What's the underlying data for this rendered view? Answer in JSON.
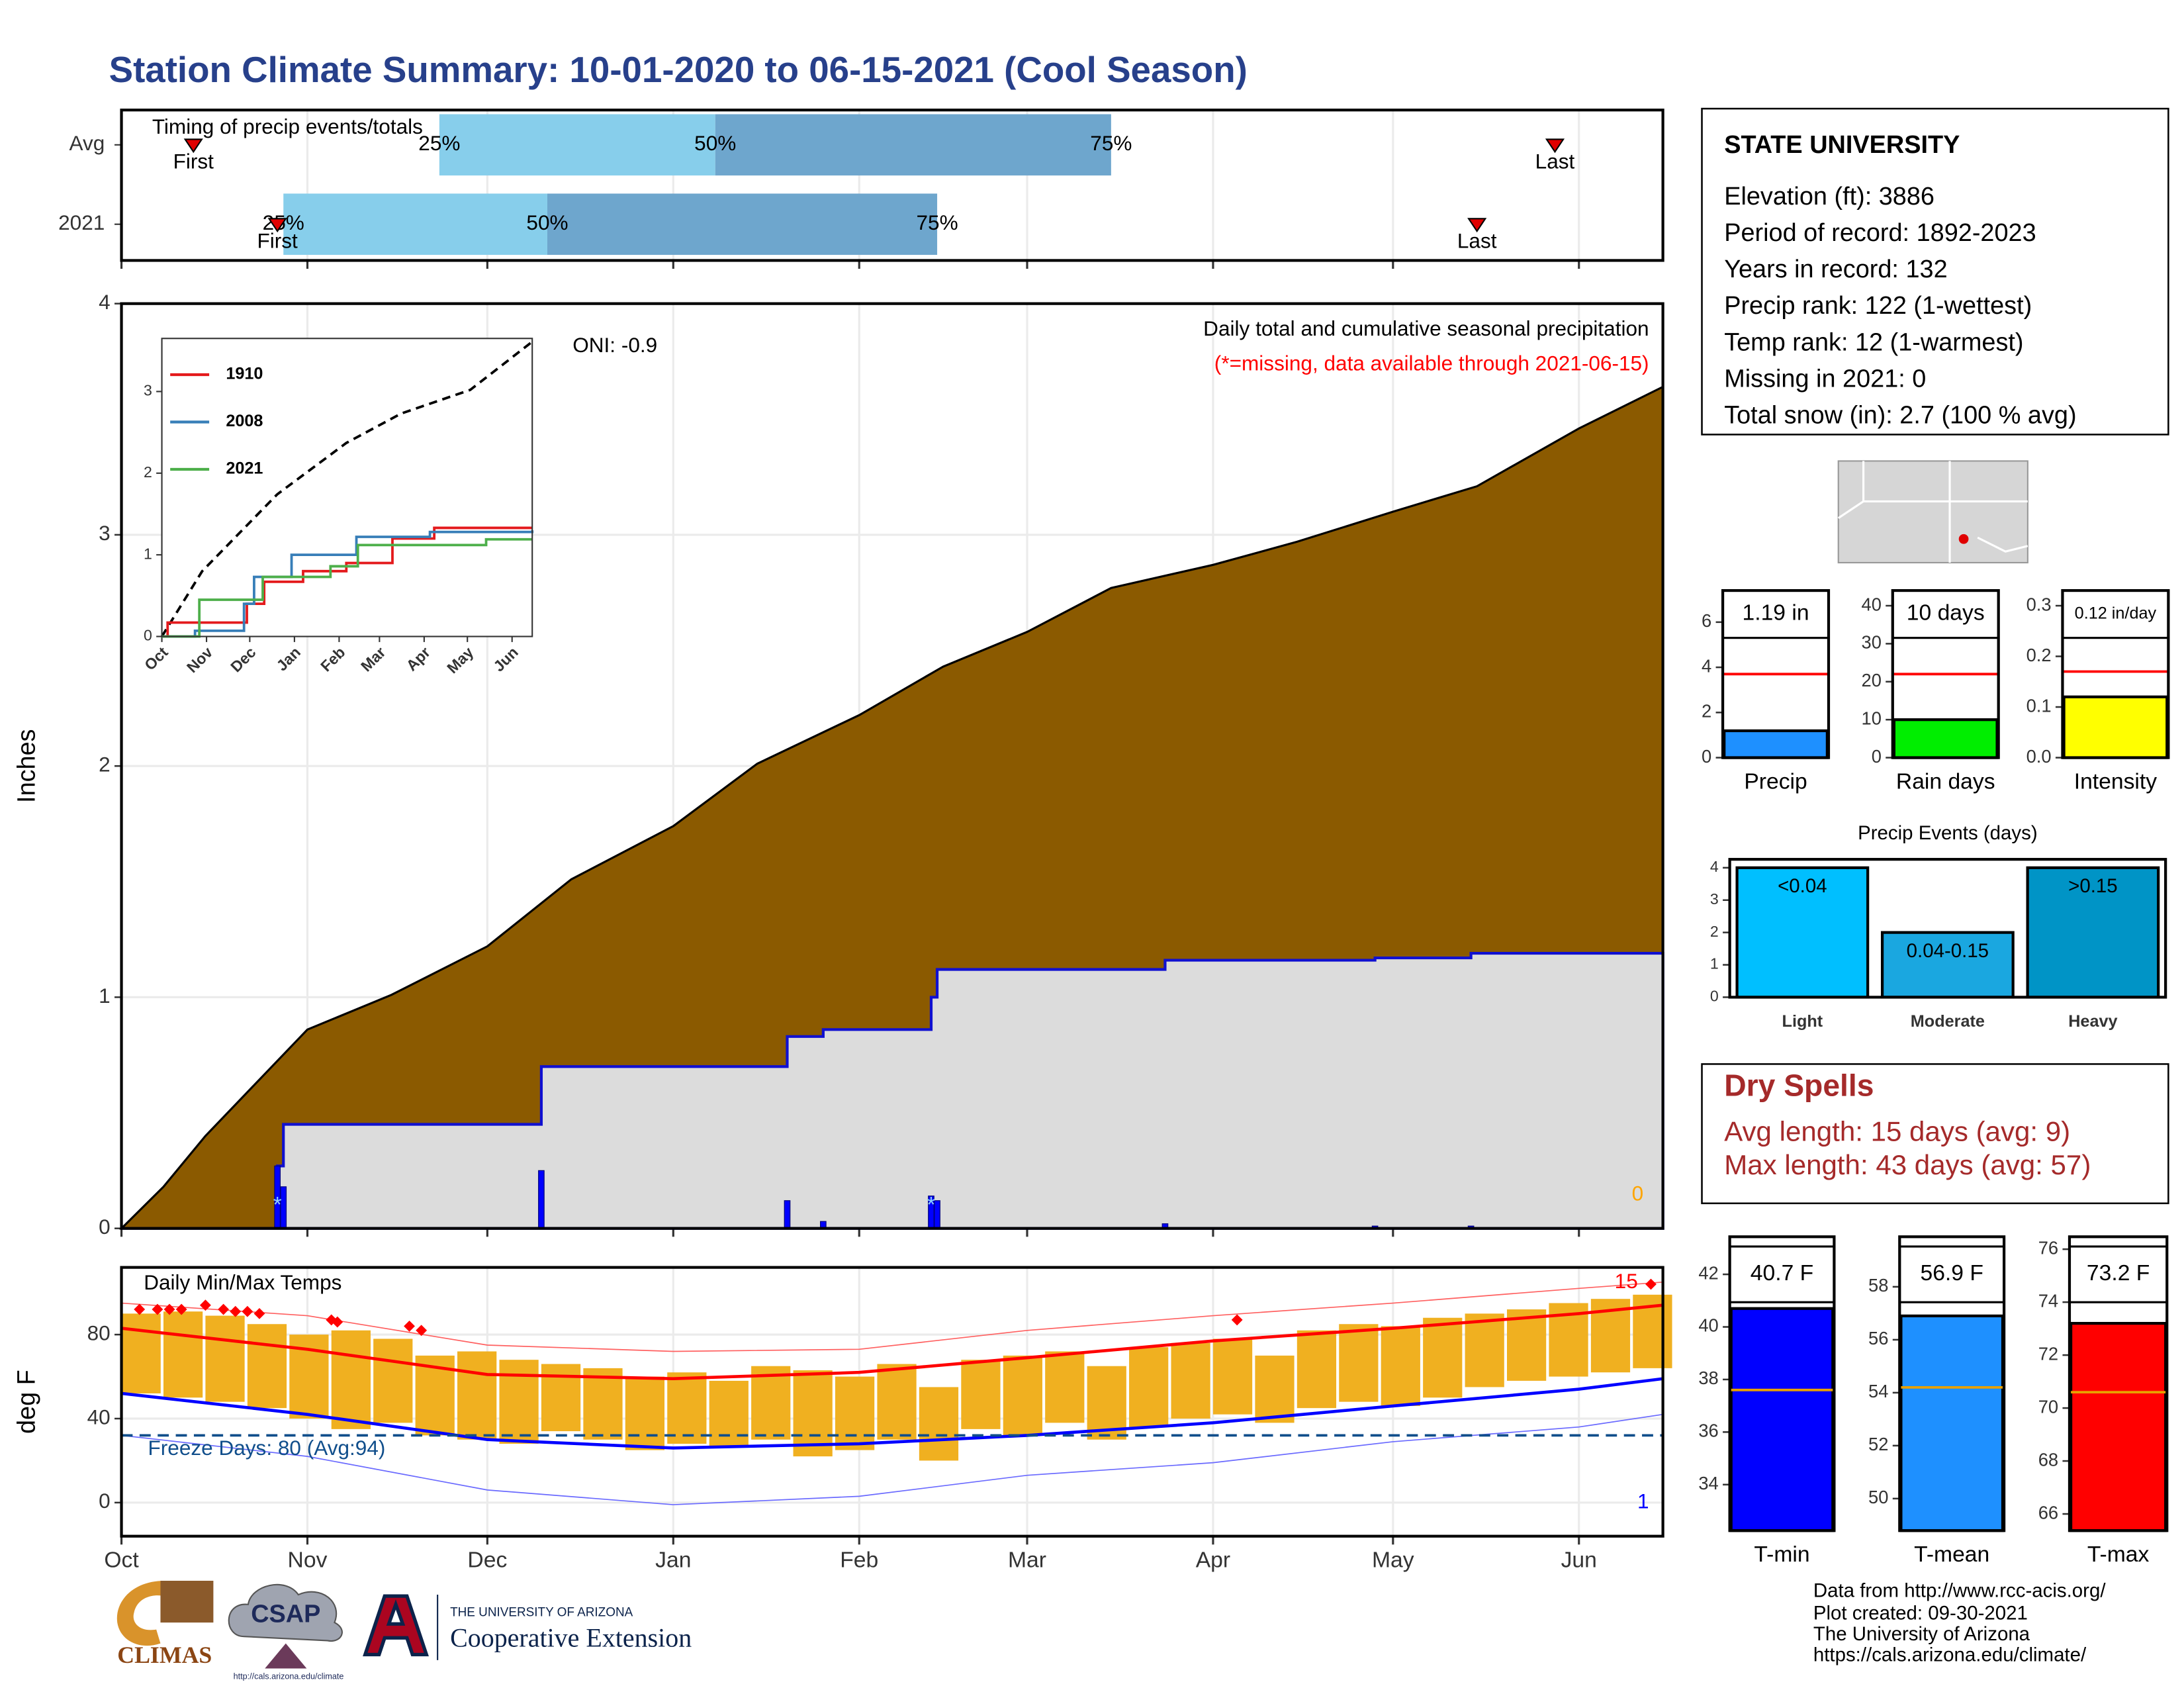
{
  "title": "Station Climate Summary: 10-01-2020 to 06-15-2021 (Cool Season)",
  "station": {
    "name": "STATE UNIVERSITY",
    "lines": [
      "Elevation (ft): 3886",
      "Period of record: 1892-2023",
      "Years in record: 132",
      "Precip rank: 122 (1-wettest)",
      "Temp rank: 12 (1-warmest)",
      "Missing in 2021: 0",
      "Total snow (in): 2.7 (100 % avg)"
    ]
  },
  "dry_spells": {
    "title": "Dry Spells",
    "lines": [
      "Avg length: 15 days (avg: 9)",
      "Max length: 43 days (avg: 57)"
    ]
  },
  "footer": [
    "Data from http://www.rcc-acis.org/",
    "Plot created: 09-30-2021",
    "The University of Arizona",
    "https://cals.arizona.edu/climate/"
  ],
  "logos": {
    "climas": "CLIMAS",
    "csap": "CSAP",
    "csap_url": "http://cals.arizona.edu/climate",
    "ua": "THE UNIVERSITY OF ARIZONA",
    "extension": "Cooperative Extension"
  },
  "chart_data": [
    {
      "type": "timing",
      "title": "Timing of precip events/totals",
      "categories": [
        "Avg",
        "2021"
      ],
      "xlim": [
        0,
        257
      ],
      "xticks": [
        0,
        31,
        61,
        92,
        123,
        151,
        182,
        212,
        243
      ],
      "grid": true,
      "quantile_labels": [
        "25%",
        "50%",
        "75%"
      ],
      "first_label": "First",
      "last_label": "Last",
      "series": [
        {
          "first": 12,
          "quantiles": [
            53,
            99,
            165
          ],
          "last": 239
        },
        {
          "first": 26,
          "quantiles": [
            27,
            71,
            136
          ],
          "last": 226
        }
      ],
      "colors": [
        "#87ceeb",
        "#6ea6cd"
      ],
      "marker_color": "#e00000"
    },
    {
      "type": "precip",
      "title": "Daily total and cumulative seasonal precipitation",
      "subtitle": "(*=missing, data available through 2021-06-15)",
      "annotation": "ONI: -0.9",
      "ylabel": "Inches",
      "xlim": [
        0,
        257
      ],
      "xticks": [
        0,
        31,
        61,
        92,
        123,
        151,
        182,
        212,
        243
      ],
      "ylim": [
        0,
        4
      ],
      "yticks": [
        0,
        1,
        2,
        3,
        4
      ],
      "grid": true,
      "average": {
        "x": [
          0,
          7,
          14,
          31,
          45,
          61,
          75,
          92,
          106,
          123,
          137,
          151,
          165,
          182,
          196,
          212,
          226,
          243,
          257
        ],
        "values": [
          0,
          0.18,
          0.4,
          0.86,
          1.01,
          1.22,
          1.51,
          1.74,
          2.01,
          2.22,
          2.43,
          2.58,
          2.77,
          2.87,
          2.97,
          3.1,
          3.21,
          3.46,
          3.64
        ],
        "color": "#8b5a00"
      },
      "season": {
        "x": [
          0,
          26,
          27,
          70,
          111,
          117,
          135,
          136,
          174,
          209,
          225,
          257
        ],
        "values": [
          0,
          0.27,
          0.45,
          0.7,
          0.83,
          0.86,
          1.0,
          1.12,
          1.16,
          1.17,
          1.19,
          1.19
        ],
        "color": "#1010d0"
      },
      "daily": {
        "x": [
          26,
          27,
          70,
          111,
          117,
          135,
          136,
          174,
          209,
          225
        ],
        "values": [
          0.27,
          0.18,
          0.25,
          0.12,
          0.03,
          0.14,
          0.12,
          0.02,
          0.01,
          0.01
        ],
        "color": "#0000ff"
      },
      "snow": {
        "x": [
          26,
          135
        ],
        "symbol": "*"
      },
      "missing_count": 0
    },
    {
      "type": "line",
      "xlim": [
        0,
        257
      ],
      "ylim": [
        0,
        3.65
      ],
      "yticks": [
        0,
        1,
        2,
        3
      ],
      "xticks": [
        {
          "value": 0,
          "label": "Oct"
        },
        {
          "value": 31,
          "label": "Nov"
        },
        {
          "value": 61,
          "label": "Dec"
        },
        {
          "value": 92,
          "label": "Jan"
        },
        {
          "value": 123,
          "label": "Feb"
        },
        {
          "value": 151,
          "label": "Mar"
        },
        {
          "value": 182,
          "label": "Apr"
        },
        {
          "value": 212,
          "label": "May"
        },
        {
          "value": 243,
          "label": "Jun"
        }
      ],
      "series": [
        {
          "name": "1910",
          "color": "#e41a1c",
          "x": [
            0,
            4,
            59,
            71,
            98,
            128,
            160,
            189,
            257
          ],
          "values": [
            0,
            0.17,
            0.4,
            0.67,
            0.8,
            0.9,
            1.2,
            1.33,
            1.33
          ]
        },
        {
          "name": "2008",
          "color": "#377eb8",
          "x": [
            0,
            23,
            57,
            64,
            90,
            135,
            186,
            257
          ],
          "values": [
            0,
            0.07,
            0.4,
            0.73,
            1.0,
            1.22,
            1.28,
            1.3
          ]
        },
        {
          "name": "2021",
          "color": "#4daf4a",
          "x": [
            0,
            26,
            70,
            117,
            136,
            225,
            257
          ],
          "values": [
            0,
            0.45,
            0.73,
            0.86,
            1.12,
            1.19,
            1.19
          ]
        }
      ],
      "average": {
        "x": [
          0,
          28,
          80,
          128,
          166,
          214,
          257
        ],
        "values": [
          0,
          0.8,
          1.74,
          2.37,
          2.73,
          3.02,
          3.61
        ]
      }
    },
    {
      "type": "temps",
      "title": "Daily Min/Max Temps",
      "ylabel": "deg F",
      "ylim": [
        -16,
        112
      ],
      "yticks": [
        0,
        40,
        80
      ],
      "xlim": [
        0,
        257
      ],
      "grid": true,
      "xticks": [
        {
          "value": 0,
          "label": "Oct"
        },
        {
          "value": 31,
          "label": "Nov"
        },
        {
          "value": 61,
          "label": "Dec"
        },
        {
          "value": 92,
          "label": "Jan"
        },
        {
          "value": 123,
          "label": "Feb"
        },
        {
          "value": 151,
          "label": "Mar"
        },
        {
          "value": 182,
          "label": "Apr"
        },
        {
          "value": 212,
          "label": "May"
        },
        {
          "value": 243,
          "label": "Jun"
        }
      ],
      "daily": {
        "x": [
          0,
          7,
          14,
          21,
          28,
          35,
          42,
          49,
          56,
          63,
          70,
          77,
          84,
          91,
          98,
          105,
          112,
          119,
          126,
          133,
          140,
          147,
          154,
          161,
          168,
          175,
          182,
          189,
          196,
          203,
          210,
          217,
          224,
          231,
          238,
          245,
          252
        ],
        "max": [
          90,
          91,
          89,
          85,
          80,
          82,
          78,
          70,
          72,
          68,
          66,
          64,
          60,
          62,
          58,
          65,
          63,
          60,
          66,
          55,
          68,
          70,
          72,
          65,
          74,
          76,
          78,
          70,
          82,
          85,
          84,
          88,
          90,
          92,
          95,
          97,
          99
        ],
        "min": [
          52,
          50,
          48,
          45,
          40,
          35,
          38,
          32,
          30,
          28,
          34,
          30,
          25,
          28,
          27,
          30,
          22,
          25,
          30,
          20,
          35,
          32,
          38,
          30,
          36,
          40,
          42,
          38,
          45,
          48,
          46,
          50,
          55,
          58,
          60,
          62,
          64
        ],
        "color": "#f0b020"
      },
      "normals_x": [
        0,
        31,
        61,
        92,
        123,
        151,
        182,
        212,
        243,
        257
      ],
      "avg_max": [
        83,
        73,
        61,
        59,
        62,
        69,
        77,
        83,
        90,
        94
      ],
      "avg_min": [
        52,
        42,
        30,
        26,
        28,
        32,
        38,
        46,
        54,
        59
      ],
      "record_max": [
        95,
        89,
        75,
        72,
        73,
        82,
        89,
        95,
        102,
        105
      ],
      "record_min": [
        32,
        22,
        6,
        -1,
        3,
        13,
        19,
        29,
        36,
        42
      ],
      "record_highs": {
        "x": [
          3,
          6,
          8,
          10,
          14,
          17,
          19,
          21,
          23,
          35,
          36,
          48,
          50,
          186,
          255
        ],
        "values": [
          92,
          92,
          92,
          92,
          94,
          92,
          91,
          91,
          90,
          87,
          86,
          84,
          82,
          87,
          104
        ]
      },
      "record_high_count": 15,
      "record_low_count": 1,
      "freeze": {
        "threshold": 32,
        "label": "Freeze Days: 80 (Avg:94)"
      }
    },
    {
      "type": "bar",
      "categories": [
        "Precip"
      ],
      "values": [
        1.19
      ],
      "value_labels": [
        "1.19 in"
      ],
      "average": 3.7,
      "color": "#1e90ff",
      "average_color": "#ff0000",
      "ylim": [
        0,
        7.4
      ],
      "yticks": [
        0,
        2,
        4,
        6
      ]
    },
    {
      "type": "bar",
      "categories": [
        "Rain days"
      ],
      "values": [
        10
      ],
      "value_labels": [
        "10 days"
      ],
      "average": 22,
      "color": "#00ee00",
      "average_color": "#ff0000",
      "ylim": [
        0,
        44
      ],
      "yticks": [
        0,
        10,
        20,
        30,
        40
      ]
    },
    {
      "type": "bar",
      "categories": [
        "Intensity"
      ],
      "values": [
        0.12
      ],
      "value_labels": [
        "0.12 in/day"
      ],
      "average": 0.17,
      "color": "#ffff00",
      "average_color": "#ff0000",
      "ylim": [
        0,
        0.33
      ],
      "yticks": [
        {
          "value": 0,
          "label": "0.0"
        },
        0.1,
        0.2,
        0.3
      ]
    },
    {
      "type": "bar",
      "title": "Precip Events (days)",
      "categories": [
        "Light",
        "Moderate",
        "Heavy"
      ],
      "values": [
        4,
        2,
        4
      ],
      "class_labels": [
        "<0.04",
        "0.04-0.15",
        ">0.15"
      ],
      "colors": [
        "#00bfff",
        "#1aa7e0",
        "#0094c6"
      ],
      "ylim": [
        0,
        4.26
      ],
      "yticks": [
        0,
        1,
        2,
        3,
        4
      ]
    },
    {
      "type": "bar",
      "categories": [
        "T-min"
      ],
      "values": [
        40.7
      ],
      "value_labels": [
        "40.7 F"
      ],
      "average": 37.6,
      "color": "#0000ff",
      "average_color": "#e8a000",
      "ylim": [
        32.25,
        43.43
      ],
      "yticks": [
        34,
        36,
        38,
        40,
        42
      ]
    },
    {
      "type": "bar",
      "categories": [
        "T-mean"
      ],
      "values": [
        56.9
      ],
      "value_labels": [
        "56.9 F"
      ],
      "average": 54.2,
      "color": "#1e90ff",
      "average_color": "#e8a000",
      "ylim": [
        48.79,
        59.89
      ],
      "yticks": [
        50,
        52,
        54,
        56,
        58
      ]
    },
    {
      "type": "bar",
      "categories": [
        "T-max"
      ],
      "values": [
        73.2
      ],
      "value_labels": [
        "73.2 F"
      ],
      "average": 70.6,
      "color": "#ff0000",
      "average_color": "#e8a000",
      "ylim": [
        65.37,
        76.47
      ],
      "yticks": [
        66,
        68,
        70,
        72,
        74,
        76
      ]
    }
  ]
}
